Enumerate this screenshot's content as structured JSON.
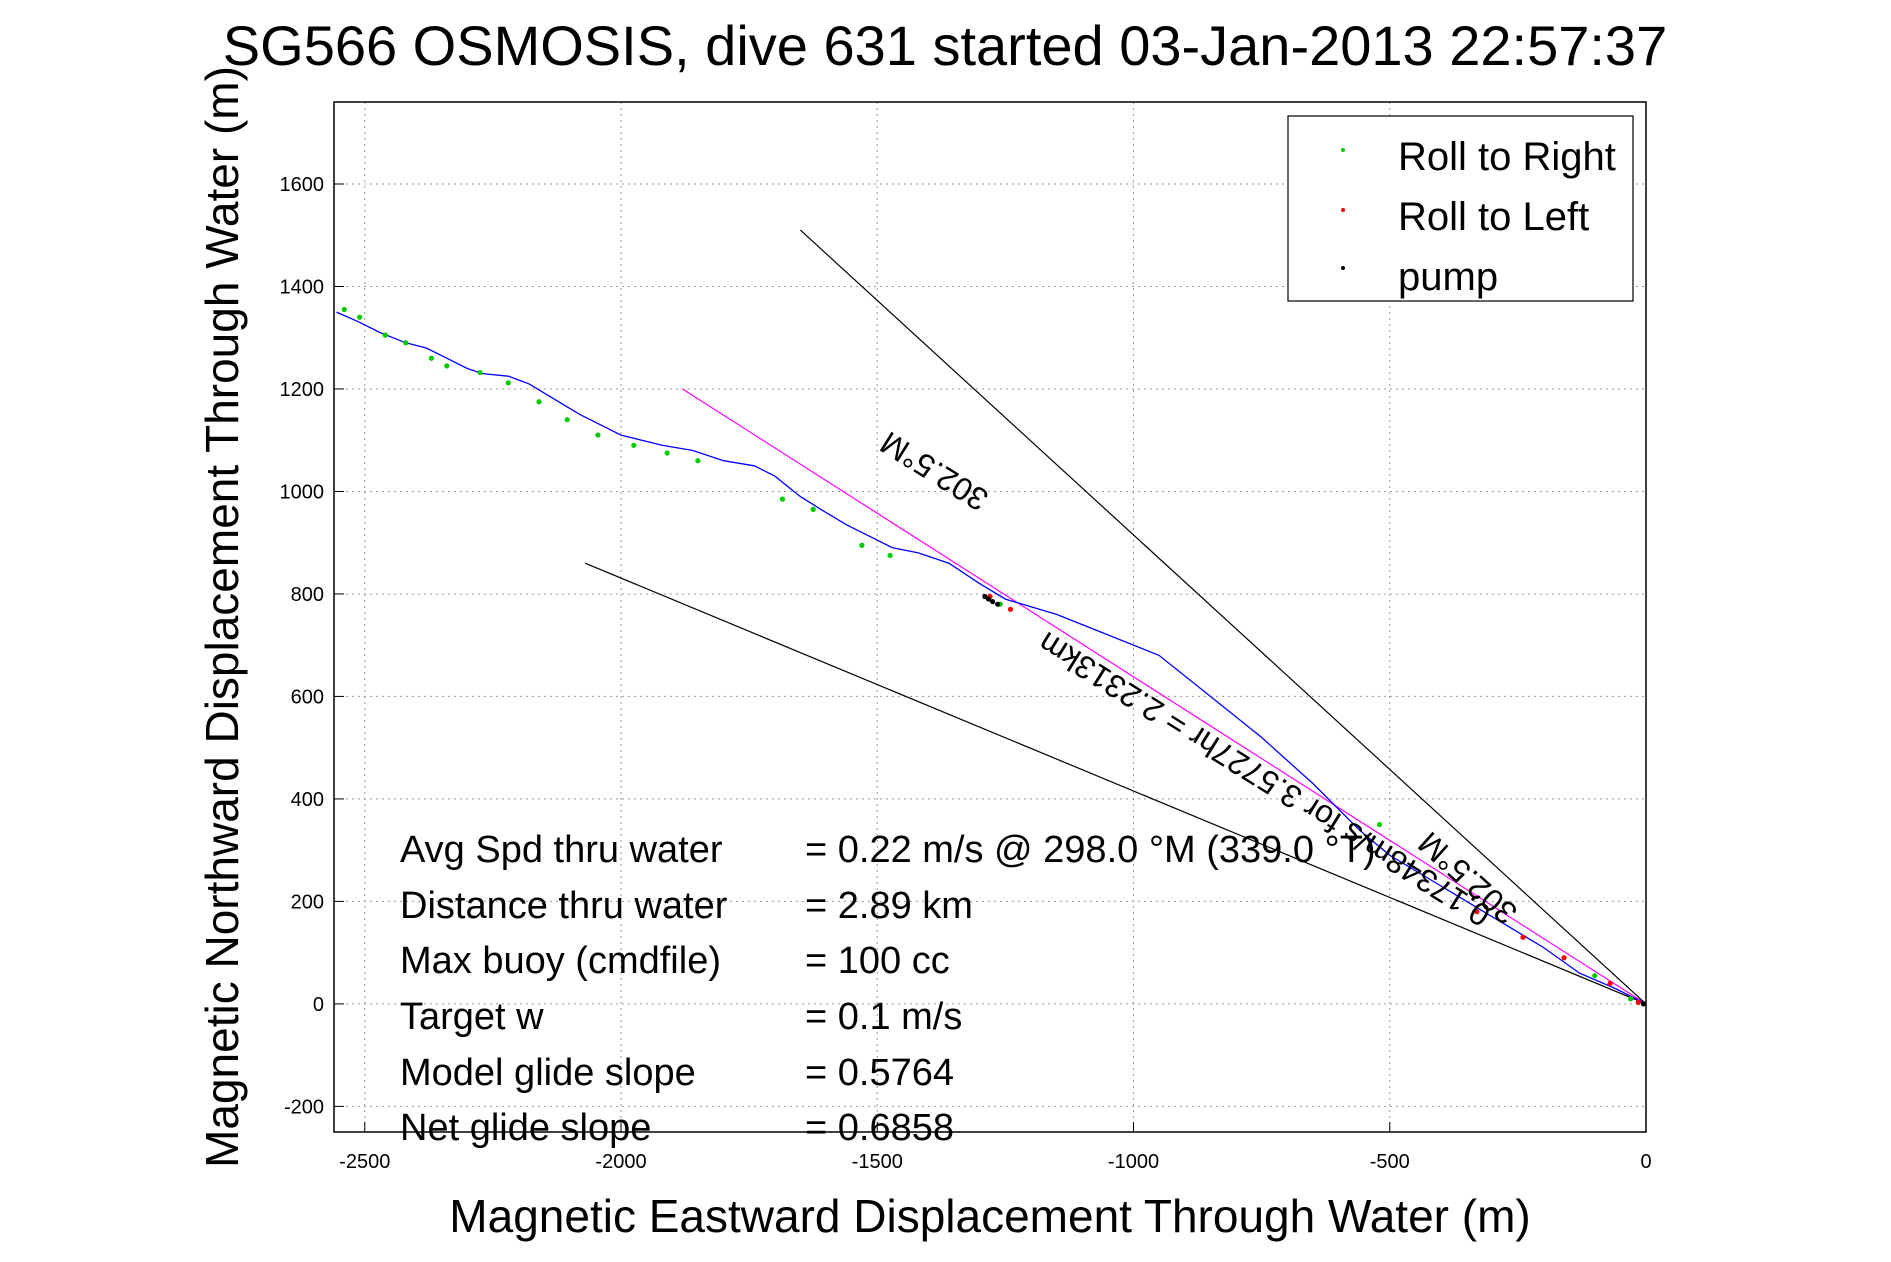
{
  "chart_data": {
    "type": "scatter",
    "title": "SG566 OSMOSIS, dive 631 started 03-Jan-2013 22:57:37",
    "xlabel": "Magnetic Eastward Displacement Through Water (m)",
    "ylabel": "Magnetic Northward Displacement Through Water (m)",
    "xlim": [
      -2560,
      0
    ],
    "ylim": [
      -250,
      1760
    ],
    "xticks": [
      -2500,
      -2000,
      -1500,
      -1000,
      -500,
      0
    ],
    "yticks": [
      -200,
      0,
      200,
      400,
      600,
      800,
      1000,
      1200,
      1400,
      1600
    ],
    "grid": true,
    "legend_position": "top-right",
    "legend": [
      {
        "label": "Roll to Right",
        "color": "#00cc00"
      },
      {
        "label": "Roll to Left",
        "color": "#ff0000"
      },
      {
        "label": "pump",
        "color": "#000000"
      }
    ],
    "track": {
      "name": "Track",
      "color": "#0000ff",
      "x": [
        0,
        -60,
        -130,
        -200,
        -300,
        -400,
        -500,
        -560,
        -650,
        -750,
        -850,
        -950,
        -1050,
        -1150,
        -1250,
        -1300,
        -1360,
        -1420,
        -1470,
        -1510,
        -1560,
        -1610,
        -1650,
        -1700,
        -1740,
        -1800,
        -1860,
        -1920,
        -2000,
        -2040,
        -2080,
        -2130,
        -2180,
        -2220,
        -2270,
        -2300,
        -2340,
        -2380,
        -2420,
        -2470,
        -2510,
        -2555
      ],
      "y": [
        0,
        30,
        60,
        110,
        170,
        230,
        290,
        340,
        430,
        520,
        600,
        680,
        720,
        760,
        790,
        820,
        860,
        880,
        890,
        910,
        935,
        965,
        990,
        1030,
        1050,
        1060,
        1080,
        1090,
        1110,
        1130,
        1150,
        1180,
        1210,
        1225,
        1230,
        1240,
        1260,
        1280,
        1290,
        1310,
        1330,
        1350
      ]
    },
    "roll_right": {
      "x": [
        -30,
        -100,
        -520,
        -1260,
        -1475,
        -1530,
        -1625,
        -1685,
        -1850,
        -1910,
        -1975,
        -2045,
        -2105,
        -2160,
        -2220,
        -2275,
        -2340,
        -2370,
        -2420,
        -2460,
        -2510,
        -2540
      ],
      "y": [
        10,
        55,
        350,
        780,
        875,
        895,
        965,
        985,
        1060,
        1075,
        1090,
        1110,
        1140,
        1175,
        1212,
        1232,
        1245,
        1260,
        1290,
        1305,
        1340,
        1355
      ]
    },
    "roll_left": {
      "x": [
        -15,
        -70,
        -160,
        -240,
        -330,
        -1240,
        -1280
      ],
      "y": [
        3,
        40,
        90,
        130,
        180,
        770,
        795
      ]
    },
    "pump": {
      "x": [
        -5,
        -1265,
        -1275,
        -1283,
        -1290
      ],
      "y": [
        0,
        780,
        785,
        790,
        795
      ]
    },
    "reference_lines": [
      {
        "color": "#ff00ff",
        "x": [
          0,
          -1880
        ],
        "y": [
          0,
          1200
        ]
      },
      {
        "color": "#000000",
        "x": [
          0,
          -1650
        ],
        "y": [
          0,
          1510
        ]
      },
      {
        "color": "#000000",
        "x": [
          0,
          -2070
        ],
        "y": [
          0,
          860
        ]
      }
    ],
    "annotations": [
      {
        "text": "302.5°M"
      },
      {
        "text": "0.17348m/s for 3.5727hr = 2.2313km"
      },
      {
        "text": "302.5°M"
      }
    ],
    "stats": [
      {
        "label": "Avg Spd thru water",
        "value": "=  0.22 m/s @ 298.0 °M (339.0 °T)"
      },
      {
        "label": "Distance thru water",
        "value": "=  2.89 km"
      },
      {
        "label": "Max buoy (cmdfile)",
        "value": "= 100 cc"
      },
      {
        "label": "Target w",
        "value": "= 0.1 m/s"
      },
      {
        "label": "Model glide slope",
        "value": "= 0.5764"
      },
      {
        "label": "Net glide slope",
        "value": "= 0.6858"
      }
    ]
  }
}
